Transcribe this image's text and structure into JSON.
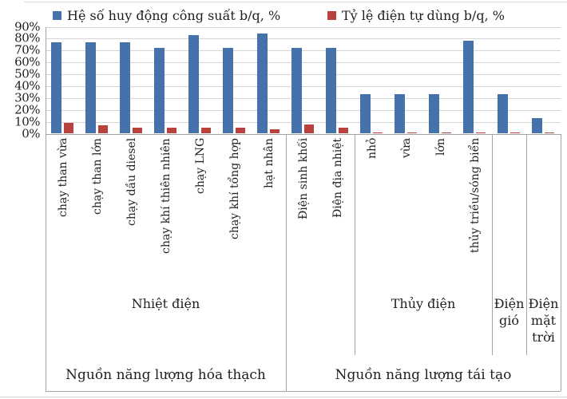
{
  "chart_data": {
    "type": "bar",
    "title": "",
    "legend_position": "top",
    "grid": true,
    "y_axis": {
      "min": 0,
      "max": 90,
      "step": 10,
      "tick_labels_top_to_bottom": [
        "90%",
        "80%",
        "70%",
        "60%",
        "50%",
        "40%",
        "30%",
        "20%",
        "10%",
        "0%"
      ]
    },
    "categories": [
      "chạy than vừa",
      "chạy than lớn",
      "chạy dầu diesel",
      "chạy khí thiên nhiên",
      "chạy LNG",
      "chạy khí tổng hợp",
      "hạt nhân",
      "Điện sinh khối",
      "Điện địa nhiệt",
      "nhỏ",
      "vừa",
      "lớn",
      "thủy triều/sóng biển",
      "Điện gió",
      "Điện mặt trời"
    ],
    "tick_labels": [
      "chạy than vừa",
      "chạy than lớn",
      "chạy dầu diesel",
      "chạy khí thiên nhiên",
      "chạy LNG",
      "chạy khí tổng hợp",
      "hạt nhân",
      "Điện sinh khối",
      "Điện địa nhiệt",
      "nhỏ",
      "vừa",
      "lớn",
      "thủy triều/sóng biển",
      "",
      ""
    ],
    "series": [
      {
        "name": "Hệ số huy động công suất b/q, %",
        "color": "#4672ac",
        "values": [
          77,
          77,
          77,
          72,
          83,
          72,
          84,
          72,
          72,
          33,
          33,
          33,
          78,
          33,
          13
        ]
      },
      {
        "name": "Tỷ lệ điện tự dùng b/q, %",
        "color": "#b9423e",
        "values": [
          9,
          7,
          5,
          5,
          5,
          5,
          4,
          8,
          5,
          1,
          1,
          1,
          1,
          1,
          1
        ]
      }
    ],
    "groups": [
      {
        "label": "Nhiệt điện",
        "start": 0,
        "end": 6
      },
      {
        "label": "",
        "start": 7,
        "end": 8
      },
      {
        "label": "Thủy điện",
        "start": 9,
        "end": 12
      },
      {
        "label": "Điện gió",
        "start": 13,
        "end": 13
      },
      {
        "label": "Điện mặt trời",
        "start": 14,
        "end": 14
      }
    ],
    "super_groups": [
      {
        "label": "Nguồn năng lượng hóa thạch",
        "start": 0,
        "end": 6
      },
      {
        "label": "Nguồn năng lượng tái tạo",
        "start": 7,
        "end": 14
      }
    ]
  },
  "colors": {
    "series_blue": "#4672ac",
    "series_red": "#b9423e",
    "gridline": "#d6d6d6",
    "axis_line": "#a3a3a3",
    "text": "#1f1f1f",
    "background": "#ffffff"
  }
}
